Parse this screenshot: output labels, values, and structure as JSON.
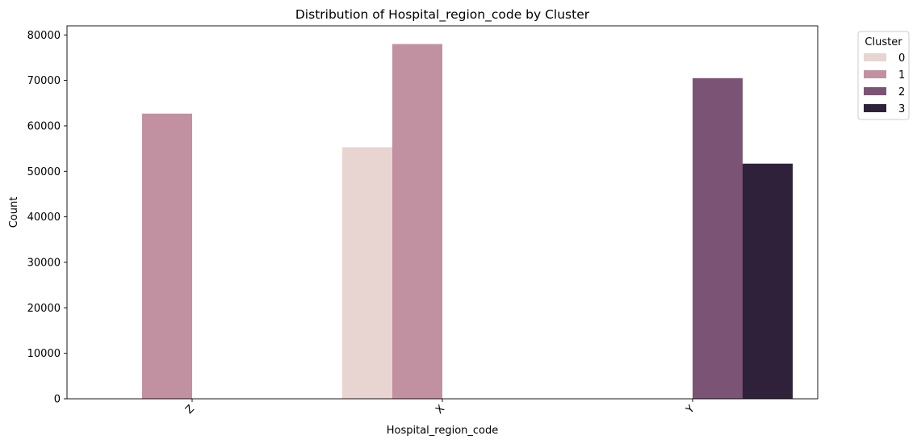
{
  "chart_data": {
    "type": "bar",
    "title": "Distribution of Hospital_region_code by Cluster",
    "xlabel": "Hospital_region_code",
    "ylabel": "Count",
    "categories": [
      "Z",
      "X",
      "Y"
    ],
    "ylim": [
      0,
      82000
    ],
    "yticks": [
      0,
      10000,
      20000,
      30000,
      40000,
      50000,
      60000,
      70000,
      80000
    ],
    "grid": false,
    "legend": {
      "title": "Cluster",
      "placement": "outside-top-right"
    },
    "series": [
      {
        "name": "0",
        "color": "#e8d4d0",
        "values": [
          null,
          55300,
          null
        ]
      },
      {
        "name": "1",
        "color": "#c291a1",
        "values": [
          62700,
          78000,
          null
        ]
      },
      {
        "name": "2",
        "color": "#7b5475",
        "values": [
          null,
          null,
          70500
        ]
      },
      {
        "name": "3",
        "color": "#2e2139",
        "values": [
          null,
          null,
          51700
        ]
      }
    ]
  }
}
